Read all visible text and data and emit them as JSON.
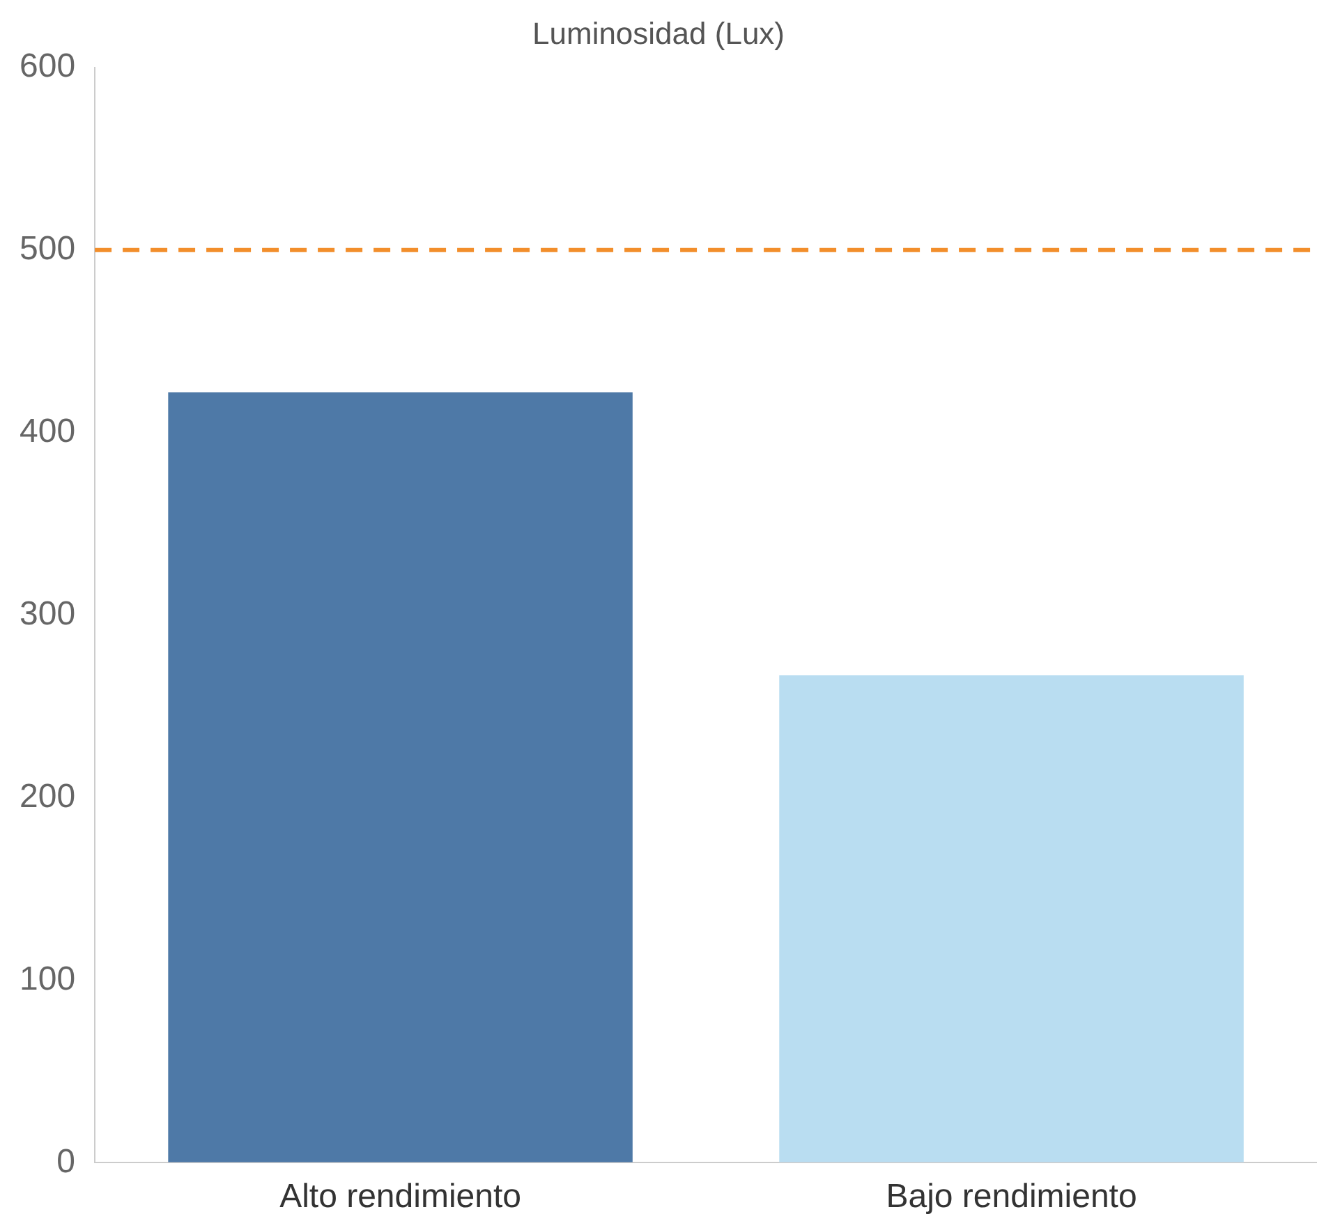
{
  "chart_data": {
    "type": "bar",
    "title": "Luminosidad (Lux)",
    "categories": [
      "Alto rendimiento",
      "Bajo rendimiento"
    ],
    "values": [
      422,
      267
    ],
    "colors": [
      "#4e79a7",
      "#b9ddf1"
    ],
    "ylim": [
      0,
      600
    ],
    "yticks": [
      0,
      100,
      200,
      300,
      400,
      500,
      600
    ],
    "grid": false,
    "legend": false,
    "ref_lines": [
      {
        "axis": "y",
        "value": 500,
        "color": "#f28e2b",
        "line_style": "dashed"
      }
    ]
  }
}
